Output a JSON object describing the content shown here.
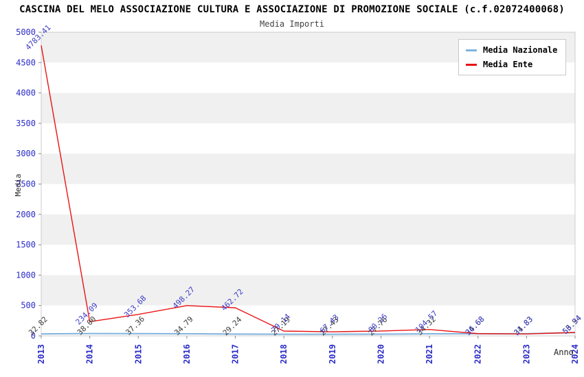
{
  "title": "CASCINA DEL MELO ASSOCIAZIONE CULTURA E ASSOCIAZIONE DI PROMOZIONE SOCIALE (c.f.02072400068)",
  "subtitle": "Media Importi",
  "legend": {
    "position": "top-right",
    "items": [
      {
        "label": "Media Nazionale",
        "color": "#7FB2DE"
      },
      {
        "label": "Media Ente",
        "color": "#E81313"
      }
    ]
  },
  "axes": {
    "y_label": "Media",
    "x_label": "Anno",
    "y_ticks": [
      0,
      500,
      1000,
      1500,
      2000,
      2500,
      3000,
      3500,
      4000,
      4500,
      5000
    ],
    "tick_label_color": "#2B2BC8"
  },
  "chart_data": {
    "type": "line",
    "title": "Media Importi",
    "xlabel": "Anno",
    "ylabel": "Media",
    "ylim": [
      0,
      5000
    ],
    "y_tick_step": 500,
    "grid": "alternating-bands",
    "band_color": "#F0F0F0",
    "band_alt_color": "#FFFFFF",
    "legend_position": "top-right",
    "x": [
      "2013",
      "2014",
      "2015",
      "2016",
      "2017",
      "2018",
      "2019",
      "2020",
      "2021",
      "2022",
      "2023",
      "2024"
    ],
    "series": [
      {
        "name": "Media Nazionale",
        "color": "#7FB2DE",
        "label_color": "#3A3A3A",
        "values": [
          32.82,
          38.0,
          37.36,
          34.79,
          29.24,
          27.19,
          27.43,
          27.76,
          34.32,
          34.68,
          34.83,
          53.94
        ],
        "point_labels": [
          "32.82",
          "38.00",
          "37.36",
          "34.79",
          "29.24",
          "27.19",
          "27.43",
          "27.76",
          "34.32",
          "34.68",
          "34.83",
          "53.94"
        ]
      },
      {
        "name": "Media Ente",
        "color": "#E81313",
        "label_color": "#3B3BC8",
        "values": [
          4783.41,
          234.09,
          353.68,
          498.27,
          462.72,
          79.14,
          67.43,
          80.26,
          104.57,
          36.68,
          31.83,
          56.34
        ],
        "point_labels": [
          "4783.41",
          "234.09",
          "353.68",
          "498.27",
          "462.72",
          "79.14",
          "67.43",
          "80.26",
          "104.57",
          "36.68",
          "31.83",
          "56.34"
        ]
      }
    ]
  }
}
